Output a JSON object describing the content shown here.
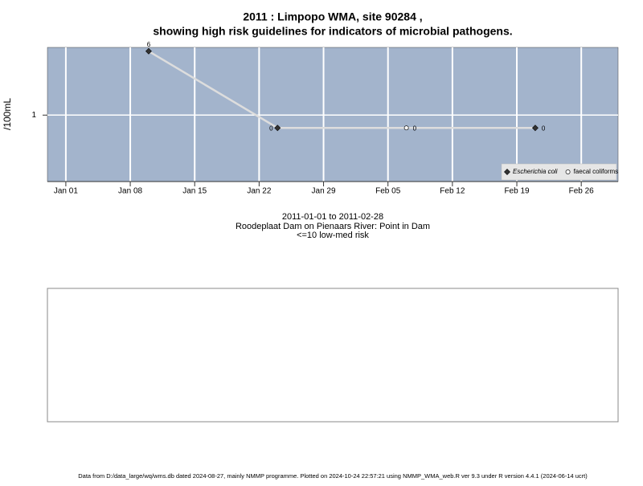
{
  "chart_data": {
    "type": "line",
    "title": "2011 : Limpopo WMA, site 90284 ,",
    "subtitle": "showing high risk guidelines for indicators of microbial pathogens.",
    "y_label": "/100mL",
    "series": [
      {
        "name": "Escherichia coli",
        "color": "#333333",
        "marker": "diamond",
        "line_color": "#dddddd",
        "x": [
          "2011-01-10",
          "2011-01-24",
          "2011-02-21"
        ],
        "values": [
          6,
          0,
          0
        ]
      },
      {
        "name": "faecal coliforms",
        "color": "#ffffff",
        "marker": "circle",
        "x": [
          "2011-02-07"
        ],
        "values": [
          0
        ]
      }
    ],
    "xlim": [
      "2010-12-30",
      "2011-03-02"
    ],
    "xticks": [
      {
        "value": "2011-01-01",
        "label": "Jan 01"
      },
      {
        "value": "2011-01-08",
        "label": "Jan 08"
      },
      {
        "value": "2011-01-15",
        "label": "Jan 15"
      },
      {
        "value": "2011-01-22",
        "label": "Jan 22"
      },
      {
        "value": "2011-01-29",
        "label": "Jan 29"
      },
      {
        "value": "2011-02-05",
        "label": "Feb 05"
      },
      {
        "value": "2011-02-12",
        "label": "Feb 12"
      },
      {
        "value": "2011-02-19",
        "label": "Feb 19"
      },
      {
        "value": "2011-02-26",
        "label": "Feb 26"
      }
    ],
    "ylim": [
      -4.2,
      6.3
    ],
    "yticks": [
      1
    ],
    "grid": true,
    "legend": "bottom-right",
    "background": "#a3b4cc",
    "notes": [
      "2011-01-01 to 2011-02-28",
      "Roodeplaat Dam on Pienaars River: Point in Dam",
      "<=10 low-med risk"
    ],
    "footer": "Data from D:/data_large/wq/wms.db dated 2024-08-27, mainly NMMP programme. Plotted on 2024-10-24 22:57:21 using NMMP_WMA_web.R ver 9.3 under R version 4.4.1 (2024-06-14 ucrt)"
  }
}
